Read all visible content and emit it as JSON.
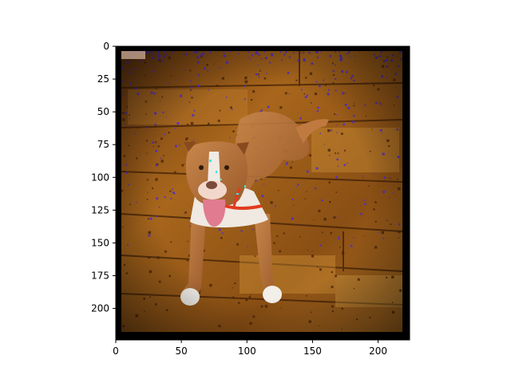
{
  "axes": {
    "x_ticks": [
      {
        "value": 0,
        "label": "0"
      },
      {
        "value": 50,
        "label": "50"
      },
      {
        "value": 100,
        "label": "100"
      },
      {
        "value": 150,
        "label": "150"
      },
      {
        "value": 200,
        "label": "200"
      }
    ],
    "y_ticks": [
      {
        "value": 0,
        "label": "0"
      },
      {
        "value": 25,
        "label": "25"
      },
      {
        "value": 50,
        "label": "50"
      },
      {
        "value": 75,
        "label": "75"
      },
      {
        "value": 100,
        "label": "100"
      },
      {
        "value": 125,
        "label": "125"
      },
      {
        "value": 150,
        "label": "150"
      },
      {
        "value": 175,
        "label": "175"
      },
      {
        "value": 200,
        "label": "200"
      }
    ],
    "xlim": [
      0,
      224
    ],
    "ylim": [
      224,
      0
    ]
  },
  "image": {
    "subject": "dog",
    "colors": {
      "border": "#000000",
      "floor_light": "#b06d1c",
      "floor_dark": "#4a2508",
      "dog_fur": "#b7743e",
      "dog_white": "#f2eee8",
      "tongue": "#e07b90",
      "harness": "#e23a1e",
      "noise_purple": "#4a2ad8"
    }
  }
}
